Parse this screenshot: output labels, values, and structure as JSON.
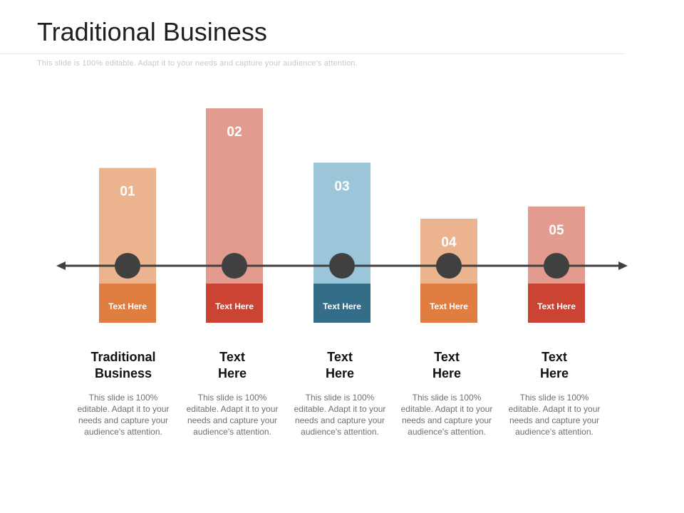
{
  "title": "Traditional Business",
  "subtitle": "This slide is 100% editable. Adapt it to your needs and capture your audience's attention.",
  "steps": [
    {
      "number": "01",
      "caption": "Text Here",
      "heading": "Traditional\nBusiness",
      "body": "This slide is 100% editable. Adapt it to your needs and capture your audience's attention.",
      "level": 0.66,
      "top_color": "#ECB38F",
      "bottom_color": "#E07E42"
    },
    {
      "number": "02",
      "caption": "Text Here",
      "heading": "Text\nHere",
      "body": "This slide is 100% editable. Adapt it to your needs and capture your audience's attention.",
      "level": 1.0,
      "top_color": "#E39B8F",
      "bottom_color": "#CB4433"
    },
    {
      "number": "03",
      "caption": "Text Here",
      "heading": "Text\nHere",
      "body": "This slide is 100% editable. Adapt it to your needs and capture your audience's attention.",
      "level": 0.69,
      "top_color": "#9BC6D9",
      "bottom_color": "#336D87"
    },
    {
      "number": "04",
      "caption": "Text Here",
      "heading": "Text\nHere",
      "body": "This slide is 100% editable. Adapt it to your needs and capture your audience's attention.",
      "level": 0.37,
      "top_color": "#ECB38F",
      "bottom_color": "#E07E42"
    },
    {
      "number": "05",
      "caption": "Text Here",
      "heading": "Text\nHere",
      "body": "This slide is 100% editable. Adapt it to your needs and capture your audience's attention.",
      "level": 0.44,
      "top_color": "#E39B8F",
      "bottom_color": "#CB4433"
    }
  ],
  "timeline_color": "#404040"
}
